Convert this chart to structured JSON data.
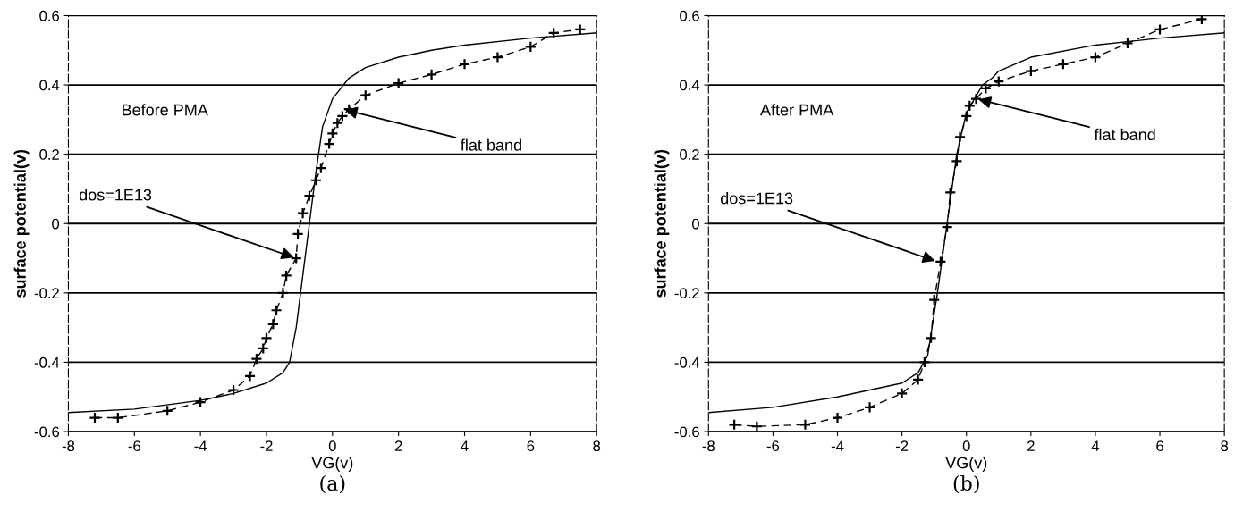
{
  "chart_data": [
    {
      "type": "line",
      "xlabel": "VG(v)",
      "ylabel": "surface potential(v)",
      "xlim": [
        -8,
        8
      ],
      "ylim": [
        -0.6,
        0.6
      ],
      "xticks": [
        -8,
        -6,
        -4,
        -2,
        0,
        2,
        4,
        6,
        8
      ],
      "yticks": [
        -0.6,
        -0.4,
        -0.2,
        0,
        0.2,
        0.4,
        0.6
      ],
      "grid": "y",
      "series": [
        {
          "color": "#000000",
          "marker": "none",
          "line_style": "solid",
          "x": [
            -8,
            -6,
            -4,
            -3,
            -2,
            -1.5,
            -1.3,
            -1.1,
            -0.9,
            -0.7,
            -0.5,
            -0.3,
            0,
            0.5,
            1,
            2,
            3,
            4,
            6,
            8
          ],
          "values": [
            -0.545,
            -0.535,
            -0.51,
            -0.49,
            -0.46,
            -0.43,
            -0.4,
            -0.3,
            -0.15,
            0,
            0.15,
            0.28,
            0.36,
            0.42,
            0.45,
            0.48,
            0.5,
            0.515,
            0.535,
            0.55
          ]
        },
        {
          "color": "#000000",
          "marker": "cross",
          "line_style": "dashed",
          "x": [
            -7.2,
            -6.5,
            -5,
            -4,
            -3,
            -2.5,
            -2.3,
            -2.1,
            -2,
            -1.8,
            -1.7,
            -1.5,
            -1.4,
            -1.1,
            -1.05,
            -0.9,
            -0.7,
            -0.5,
            -0.35,
            -0.1,
            0,
            0.15,
            0.3,
            0.5,
            1,
            2,
            3,
            4,
            5,
            6,
            6.7,
            7.5
          ],
          "values": [
            -0.56,
            -0.56,
            -0.54,
            -0.515,
            -0.48,
            -0.44,
            -0.39,
            -0.36,
            -0.33,
            -0.29,
            -0.25,
            -0.2,
            -0.15,
            -0.1,
            -0.03,
            0.03,
            0.08,
            0.125,
            0.16,
            0.23,
            0.26,
            0.29,
            0.31,
            0.33,
            0.37,
            0.405,
            0.43,
            0.46,
            0.48,
            0.51,
            0.55,
            0.56
          ]
        }
      ],
      "annotations": [
        "Before PMA",
        "(a)",
        {
          "text": "flat band",
          "x": 0.3,
          "y": 0.33
        },
        {
          "text": "dos=1E13",
          "x": -1.1,
          "y": -0.1
        }
      ]
    },
    {
      "type": "line",
      "xlabel": "VG(v)",
      "ylabel": "surface potential(v)",
      "xlim": [
        -8,
        8
      ],
      "ylim": [
        -0.6,
        0.6
      ],
      "xticks": [
        -8,
        -6,
        -4,
        -2,
        0,
        2,
        4,
        6,
        8
      ],
      "yticks": [
        -0.6,
        -0.4,
        -0.2,
        0,
        0.2,
        0.4,
        0.6
      ],
      "grid": "y",
      "series": [
        {
          "color": "#000000",
          "marker": "none",
          "line_style": "solid",
          "x": [
            -8,
            -6,
            -4,
            -2,
            -1.5,
            -1.2,
            -0.9,
            -0.6,
            -0.3,
            0,
            0.5,
            0.8,
            1,
            2,
            4,
            6,
            8
          ],
          "values": [
            -0.545,
            -0.53,
            -0.5,
            -0.46,
            -0.43,
            -0.38,
            -0.2,
            0,
            0.2,
            0.32,
            0.4,
            0.42,
            0.44,
            0.48,
            0.515,
            0.535,
            0.55
          ]
        },
        {
          "color": "#000000",
          "marker": "cross",
          "line_style": "dashed",
          "x": [
            -7.2,
            -6.5,
            -5,
            -4,
            -3,
            -2,
            -1.5,
            -1.3,
            -1.1,
            -1,
            -0.8,
            -0.6,
            -0.5,
            -0.3,
            -0.2,
            0,
            0.1,
            0.3,
            0.6,
            1,
            2,
            3,
            4,
            5,
            6,
            7.3
          ],
          "values": [
            -0.58,
            -0.585,
            -0.58,
            -0.56,
            -0.53,
            -0.49,
            -0.45,
            -0.4,
            -0.33,
            -0.22,
            -0.11,
            -0.01,
            0.09,
            0.18,
            0.25,
            0.31,
            0.34,
            0.36,
            0.39,
            0.41,
            0.44,
            0.46,
            0.48,
            0.52,
            0.56,
            0.59
          ]
        }
      ],
      "annotations": [
        "After PMA",
        "(b)",
        {
          "text": "flat band",
          "x": 0.3,
          "y": 0.36
        },
        {
          "text": "dos=1E13",
          "x": -0.9,
          "y": -0.11
        }
      ]
    }
  ]
}
